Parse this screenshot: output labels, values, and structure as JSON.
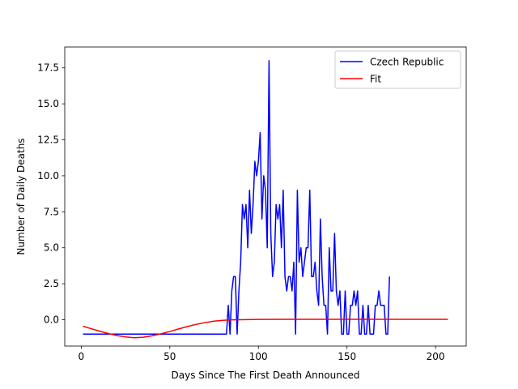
{
  "chart_data": {
    "type": "line",
    "title": "",
    "xlabel": "Days Since The First Death Announced",
    "ylabel": "Number of Daily Deaths",
    "xlim": [
      -9.3,
      217.3
    ],
    "ylim": [
      -1.83,
      18.95
    ],
    "xticks": [
      0,
      50,
      100,
      150,
      200
    ],
    "yticks": [
      0.0,
      2.5,
      5.0,
      7.5,
      10.0,
      12.5,
      15.0,
      17.5
    ],
    "xtick_labels": [
      "0",
      "50",
      "100",
      "150",
      "200"
    ],
    "ytick_labels": [
      "0.0",
      "2.5",
      "5.0",
      "7.5",
      "10.0",
      "12.5",
      "15.0",
      "17.5"
    ],
    "grid": false,
    "legend_position": "top-right",
    "series": [
      {
        "name": "Czech Republic",
        "color": "#0000ff",
        "points": [
          [
            1,
            -1
          ],
          [
            82,
            -1
          ],
          [
            83,
            1
          ],
          [
            84,
            -1
          ],
          [
            85,
            2
          ],
          [
            86,
            3
          ],
          [
            87,
            3
          ],
          [
            88,
            -1
          ],
          [
            89,
            2
          ],
          [
            90,
            4
          ],
          [
            91,
            8
          ],
          [
            92,
            7
          ],
          [
            93,
            8
          ],
          [
            94,
            5
          ],
          [
            95,
            9
          ],
          [
            96,
            6
          ],
          [
            97,
            8
          ],
          [
            98,
            11
          ],
          [
            99,
            10
          ],
          [
            100,
            11
          ],
          [
            101,
            13
          ],
          [
            102,
            7
          ],
          [
            103,
            10
          ],
          [
            104,
            9
          ],
          [
            105,
            5
          ],
          [
            106,
            18
          ],
          [
            107,
            6
          ],
          [
            108,
            3
          ],
          [
            109,
            4
          ],
          [
            110,
            8
          ],
          [
            111,
            7
          ],
          [
            112,
            8
          ],
          [
            113,
            5
          ],
          [
            114,
            9
          ],
          [
            115,
            3
          ],
          [
            116,
            2
          ],
          [
            117,
            3
          ],
          [
            118,
            3
          ],
          [
            119,
            2
          ],
          [
            120,
            4
          ],
          [
            121,
            -1
          ],
          [
            122,
            9
          ],
          [
            123,
            4
          ],
          [
            124,
            5
          ],
          [
            125,
            3
          ],
          [
            126,
            4
          ],
          [
            127,
            5
          ],
          [
            128,
            5
          ],
          [
            129,
            9
          ],
          [
            130,
            3
          ],
          [
            131,
            3
          ],
          [
            132,
            4
          ],
          [
            133,
            2
          ],
          [
            134,
            1
          ],
          [
            135,
            7
          ],
          [
            136,
            3
          ],
          [
            137,
            1
          ],
          [
            138,
            1
          ],
          [
            139,
            -1
          ],
          [
            140,
            5
          ],
          [
            141,
            2
          ],
          [
            142,
            2
          ],
          [
            143,
            6
          ],
          [
            144,
            2
          ],
          [
            145,
            1
          ],
          [
            146,
            2
          ],
          [
            147,
            -1
          ],
          [
            148,
            -1
          ],
          [
            149,
            2
          ],
          [
            150,
            -1
          ],
          [
            151,
            -1
          ],
          [
            152,
            1
          ],
          [
            153,
            1
          ],
          [
            154,
            2
          ],
          [
            155,
            1
          ],
          [
            156,
            2
          ],
          [
            157,
            -1
          ],
          [
            158,
            -1
          ],
          [
            159,
            1
          ],
          [
            160,
            -1
          ],
          [
            161,
            -1
          ],
          [
            162,
            1
          ],
          [
            163,
            -1
          ],
          [
            164,
            -1
          ],
          [
            165,
            -1
          ],
          [
            166,
            1
          ],
          [
            167,
            1
          ],
          [
            168,
            2
          ],
          [
            169,
            1
          ],
          [
            170,
            1
          ],
          [
            171,
            1
          ],
          [
            172,
            -1
          ],
          [
            173,
            -1
          ],
          [
            174,
            3
          ]
        ]
      },
      {
        "name": "Fit",
        "color": "#ff0000",
        "points": [
          [
            1,
            -0.45
          ],
          [
            5,
            -0.6
          ],
          [
            10,
            -0.78
          ],
          [
            15,
            -0.95
          ],
          [
            20,
            -1.1
          ],
          [
            25,
            -1.2
          ],
          [
            30,
            -1.25
          ],
          [
            35,
            -1.22
          ],
          [
            40,
            -1.12
          ],
          [
            45,
            -0.98
          ],
          [
            50,
            -0.82
          ],
          [
            55,
            -0.64
          ],
          [
            60,
            -0.47
          ],
          [
            65,
            -0.32
          ],
          [
            70,
            -0.2
          ],
          [
            75,
            -0.1
          ],
          [
            80,
            -0.04
          ],
          [
            85,
            -0.01
          ],
          [
            90,
            0.0
          ],
          [
            100,
            0.02
          ],
          [
            120,
            0.03
          ],
          [
            150,
            0.03
          ],
          [
            180,
            0.03
          ],
          [
            207,
            0.03
          ]
        ]
      }
    ]
  }
}
